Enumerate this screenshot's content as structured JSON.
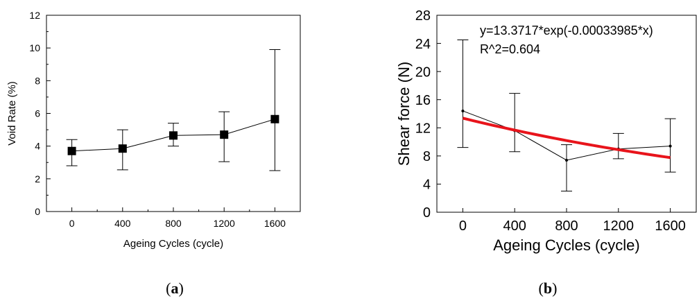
{
  "chart_data": [
    {
      "panel": "a",
      "type": "line",
      "marker": "square",
      "xlabel": "Ageing Cycles (cycle)",
      "ylabel": "Void Rate (%)",
      "xlim": [
        -200,
        1800
      ],
      "ylim": [
        0,
        12
      ],
      "xticks": [
        0,
        400,
        800,
        1200,
        1600
      ],
      "yticks": [
        0,
        2,
        4,
        6,
        8,
        10,
        12
      ],
      "grid": false,
      "series": [
        {
          "x": [
            0,
            400,
            800,
            1200,
            1600
          ],
          "y": [
            3.7,
            3.85,
            4.65,
            4.7,
            5.65
          ],
          "error_low": [
            2.8,
            2.55,
            4.0,
            3.05,
            2.5
          ],
          "error_high": [
            4.4,
            5.0,
            5.4,
            6.1,
            9.9
          ]
        }
      ]
    },
    {
      "panel": "b",
      "type": "line",
      "xlabel": "Ageing Cycles (cycle)",
      "ylabel": "Shear force (N)",
      "xlim": [
        -200,
        1800
      ],
      "ylim": [
        0,
        28
      ],
      "xticks": [
        0,
        400,
        800,
        1200,
        1600
      ],
      "yticks": [
        0,
        4,
        8,
        12,
        16,
        20,
        24,
        28
      ],
      "grid": false,
      "annotation": [
        "y=13.3717*exp(-0.00033985*x)",
        "R^2=0.604"
      ],
      "series": [
        {
          "x": [
            0,
            400,
            800,
            1200,
            1600
          ],
          "y": [
            14.4,
            11.6,
            7.4,
            9.0,
            9.4
          ],
          "error_low": [
            9.2,
            8.6,
            3.0,
            7.6,
            5.7
          ],
          "error_high": [
            24.5,
            16.9,
            9.6,
            11.2,
            13.3
          ]
        },
        {
          "fit": "exponential",
          "color": "#e8141b",
          "a": 13.3717,
          "b": -0.00033985
        }
      ]
    }
  ],
  "captions": [
    {
      "open": "(",
      "letter": "a",
      "close": ")"
    },
    {
      "open": "(",
      "letter": "b",
      "close": ")"
    }
  ]
}
